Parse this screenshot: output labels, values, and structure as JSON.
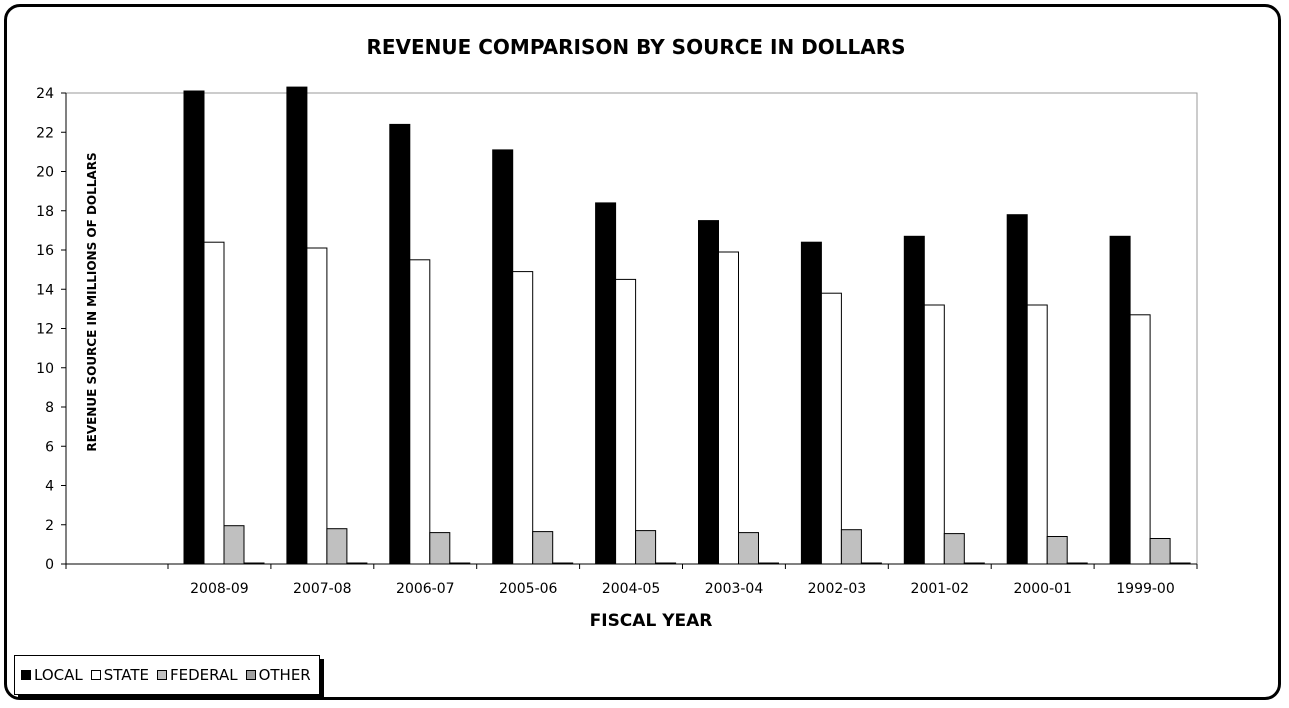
{
  "chart_data": {
    "type": "bar",
    "title": "REVENUE COMPARISON BY SOURCE IN DOLLARS",
    "xlabel": "FISCAL YEAR",
    "ylabel": "REVENUE SOURCE IN MILLIONS OF DOLLARS",
    "ylim": [
      0,
      24
    ],
    "yticks": [
      0,
      2,
      4,
      6,
      8,
      10,
      12,
      14,
      16,
      18,
      20,
      22,
      24
    ],
    "categories": [
      "2008-09",
      "2007-08",
      "2006-07",
      "2005-06",
      "2004-05",
      "2003-04",
      "2002-03",
      "2001-02",
      "2000-01",
      "1999-00"
    ],
    "series": [
      {
        "name": "LOCAL",
        "color": "#000000",
        "values": [
          24.1,
          24.3,
          22.4,
          21.1,
          18.4,
          17.5,
          16.4,
          16.7,
          17.8,
          16.7
        ]
      },
      {
        "name": "STATE",
        "color": "#ffffff",
        "values": [
          16.4,
          16.1,
          15.5,
          14.9,
          14.5,
          15.9,
          13.8,
          13.2,
          13.2,
          12.7
        ]
      },
      {
        "name": "FEDERAL",
        "color": "#c0c0c0",
        "values": [
          1.95,
          1.8,
          1.6,
          1.65,
          1.7,
          1.6,
          1.75,
          1.55,
          1.4,
          1.3
        ]
      },
      {
        "name": "OTHER",
        "color": "#a0a0a0",
        "values": [
          0.05,
          0.05,
          0.05,
          0.05,
          0.05,
          0.05,
          0.05,
          0.05,
          0.05,
          0.05
        ]
      }
    ],
    "grid": false,
    "legend_position": "bottom-left"
  }
}
